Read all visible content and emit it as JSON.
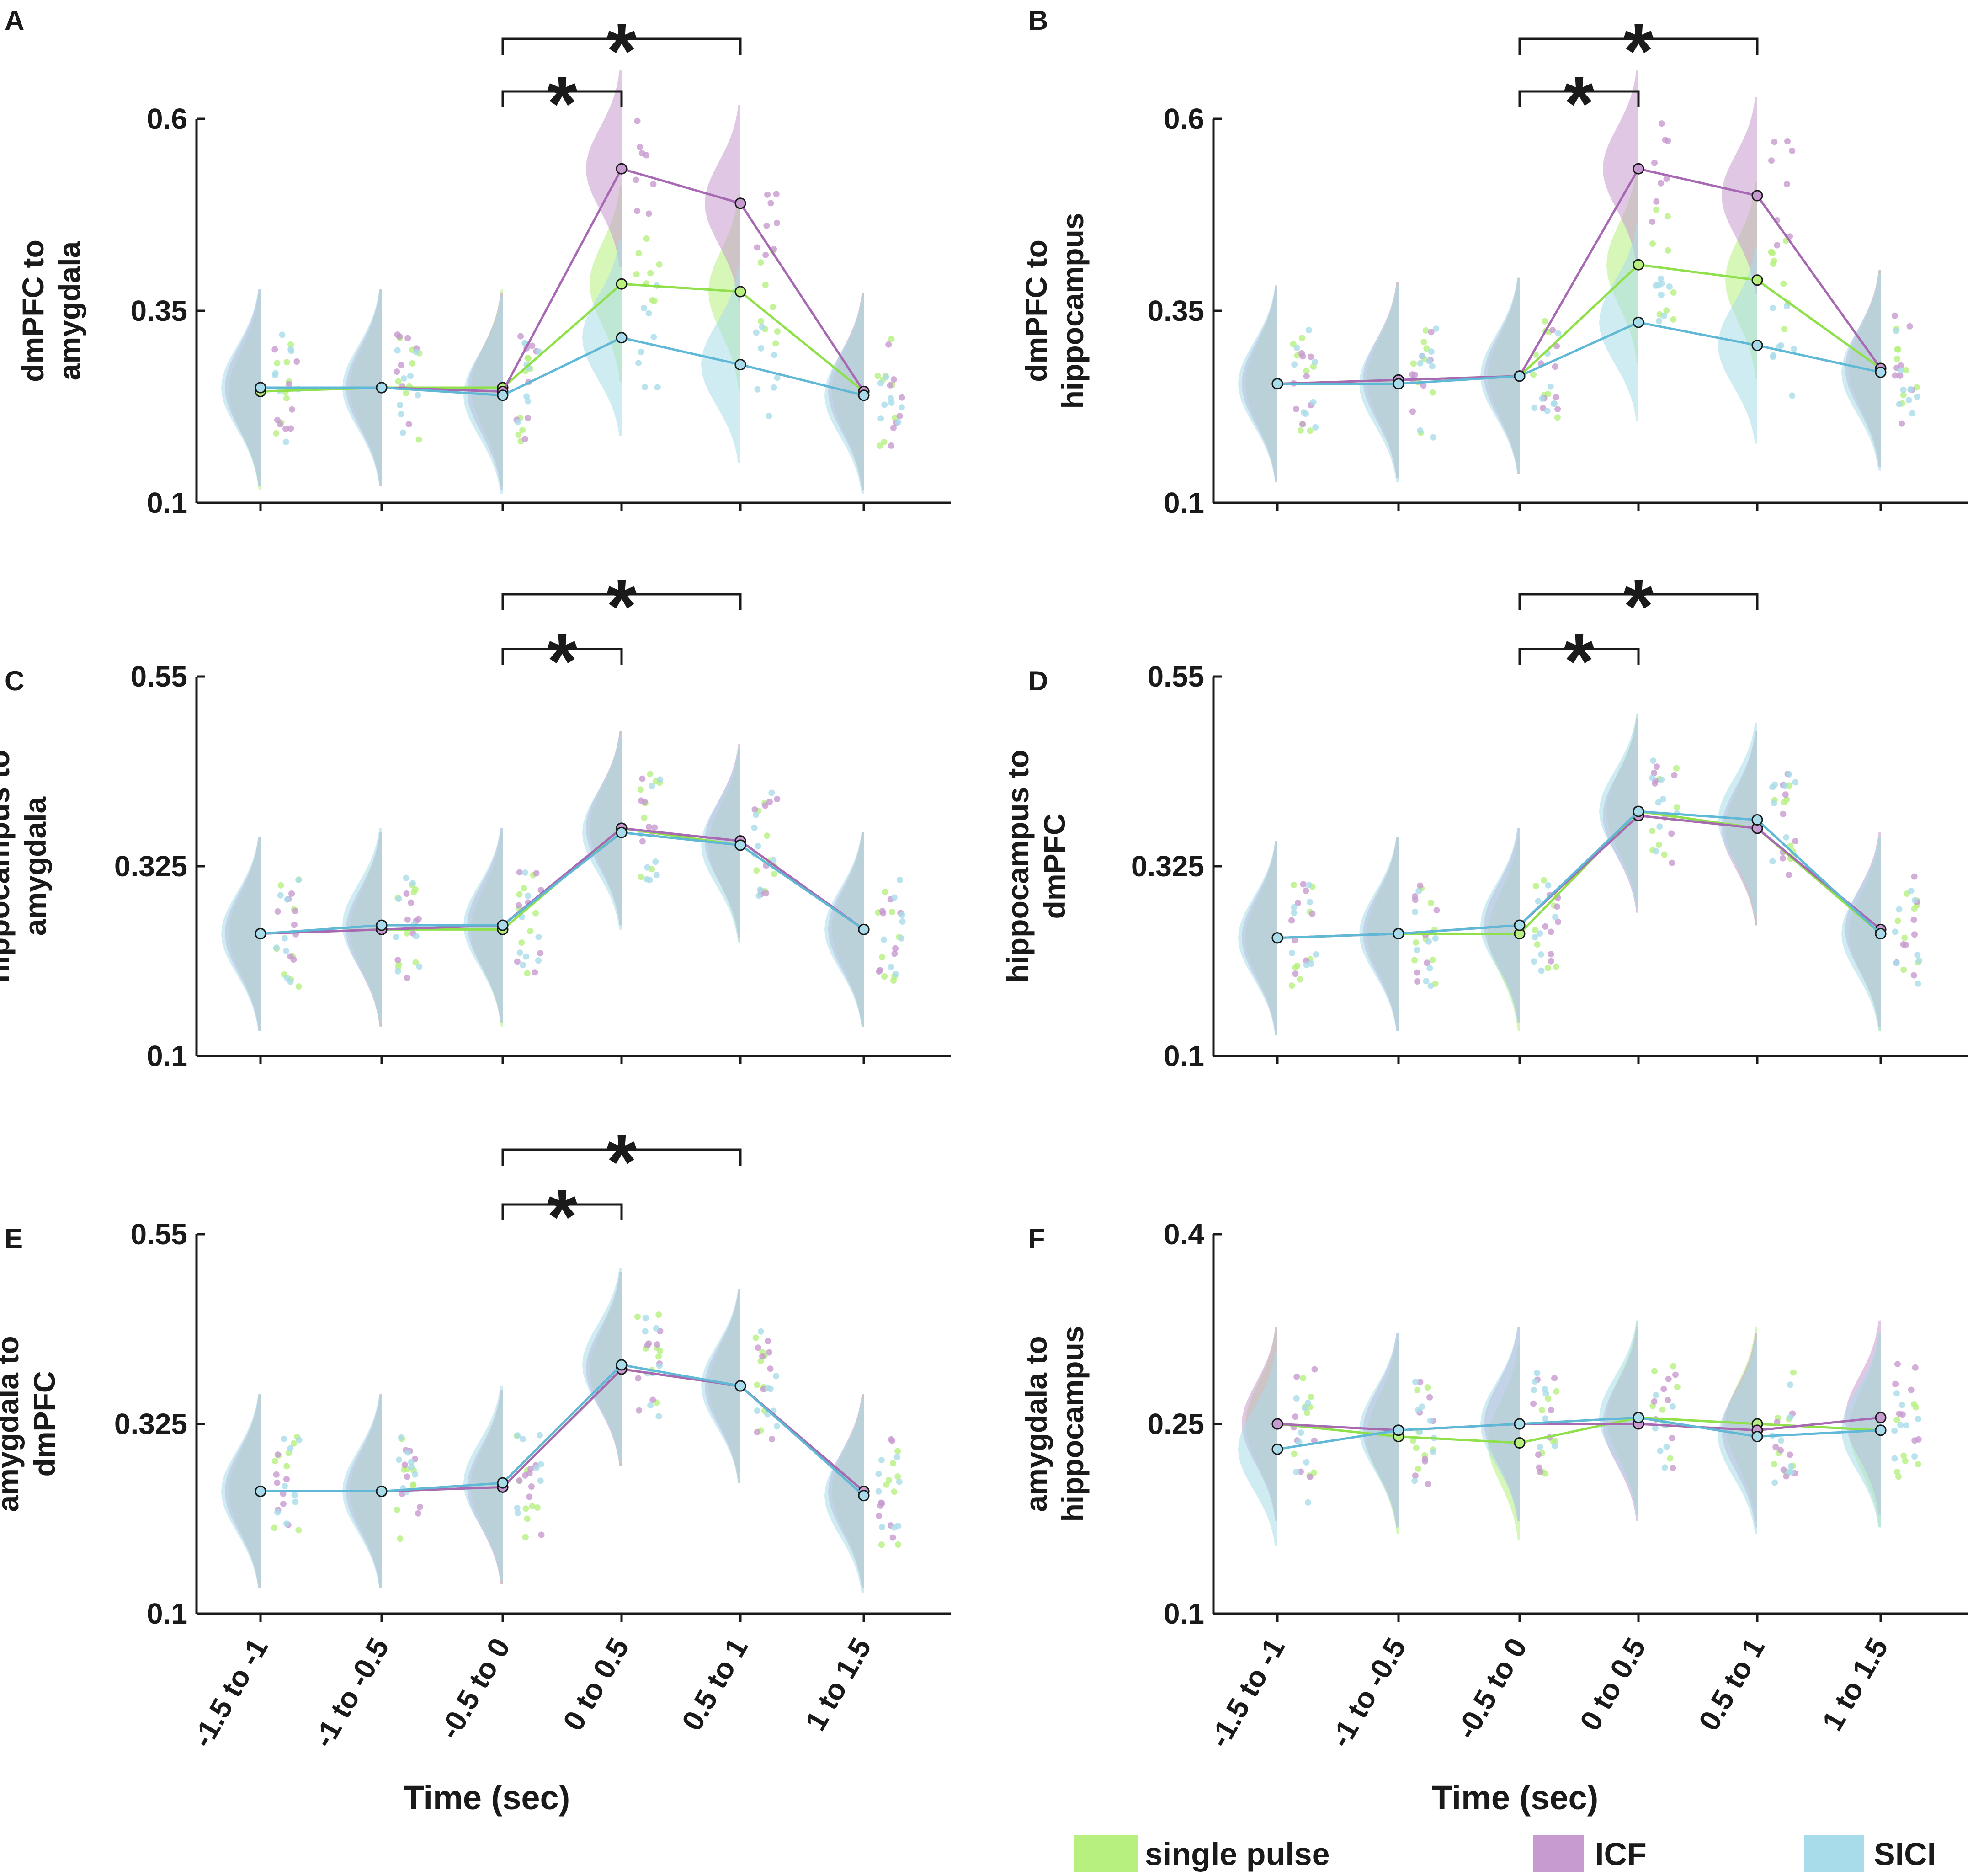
{
  "figure": {
    "xlabel": "Time (sec)",
    "legend": [
      {
        "label": "single pulse",
        "color": "#b7f07f"
      },
      {
        "label": "ICF",
        "color": "#c79ad0"
      },
      {
        "label": "SICI",
        "color": "#a9dcea"
      }
    ]
  },
  "chart_data": [
    {
      "panel": "A",
      "type": "line",
      "title": "",
      "ylabel": [
        "dmPFC to",
        "amygdala"
      ],
      "yticks": [
        "0.1",
        "0.35",
        "0.6"
      ],
      "ylim": [
        0.1,
        0.6
      ],
      "categories": [
        "-1.5 to -1",
        "-1 to -0.5",
        "-0.5 to 0",
        "0 to 0.5",
        "0.5 to 1",
        "1 to 1.5"
      ],
      "series": [
        {
          "name": "single pulse",
          "values": [
            0.245,
            0.25,
            0.25,
            0.385,
            0.375,
            0.245
          ]
        },
        {
          "name": "ICF",
          "values": [
            0.25,
            0.25,
            0.245,
            0.535,
            0.49,
            0.245
          ]
        },
        {
          "name": "SICI",
          "values": [
            0.25,
            0.25,
            0.24,
            0.315,
            0.28,
            0.24
          ]
        }
      ],
      "significance": [
        {
          "from": "-0.5 to 0",
          "to": "0 to 0.5",
          "label": "*"
        },
        {
          "from": "-0.5 to 0",
          "to": "0.5 to 1",
          "label": "*"
        }
      ]
    },
    {
      "panel": "B",
      "type": "line",
      "title": "",
      "ylabel": [
        "dmPFC to",
        "hippocampus"
      ],
      "yticks": [
        "0.1",
        "0.35",
        "0.6"
      ],
      "ylim": [
        0.1,
        0.6
      ],
      "categories": [
        "-1.5 to -1",
        "-1 to -0.5",
        "-0.5 to 0",
        "0 to 0.5",
        "0.5 to 1",
        "1 to 1.5"
      ],
      "series": [
        {
          "name": "single pulse",
          "values": [
            0.255,
            0.26,
            0.265,
            0.41,
            0.39,
            0.275
          ]
        },
        {
          "name": "ICF",
          "values": [
            0.255,
            0.26,
            0.265,
            0.535,
            0.5,
            0.275
          ]
        },
        {
          "name": "SICI",
          "values": [
            0.255,
            0.255,
            0.265,
            0.335,
            0.305,
            0.27
          ]
        }
      ],
      "significance": [
        {
          "from": "-0.5 to 0",
          "to": "0 to 0.5",
          "label": "*"
        },
        {
          "from": "-0.5 to 0",
          "to": "0.5 to 1",
          "label": "*"
        }
      ]
    },
    {
      "panel": "C",
      "type": "line",
      "title": "",
      "ylabel": [
        "hippocampus to",
        "amygdala"
      ],
      "yticks": [
        "0.1",
        "0.325",
        "0.55"
      ],
      "ylim": [
        0.1,
        0.55
      ],
      "categories": [
        "-1.5 to -1",
        "-1 to -0.5",
        "-0.5 to 0",
        "0 to 0.5",
        "0.5 to 1",
        "1 to 1.5"
      ],
      "series": [
        {
          "name": "single pulse",
          "values": [
            0.245,
            0.25,
            0.25,
            0.37,
            0.35,
            0.25
          ]
        },
        {
          "name": "ICF",
          "values": [
            0.245,
            0.25,
            0.255,
            0.37,
            0.355,
            0.25
          ]
        },
        {
          "name": "SICI",
          "values": [
            0.245,
            0.255,
            0.255,
            0.365,
            0.35,
            0.25
          ]
        }
      ],
      "significance": [
        {
          "from": "-0.5 to 0",
          "to": "0 to 0.5",
          "label": "*"
        },
        {
          "from": "-0.5 to 0",
          "to": "0.5 to 1",
          "label": "*"
        }
      ]
    },
    {
      "panel": "D",
      "type": "line",
      "title": "",
      "ylabel": [
        "hippocampus to",
        "dmPFC"
      ],
      "yticks": [
        "0.1",
        "0.325",
        "0.55"
      ],
      "ylim": [
        0.1,
        0.55
      ],
      "categories": [
        "-1.5 to -1",
        "-1 to -0.5",
        "-0.5 to 0",
        "0 to 0.5",
        "0.5 to 1",
        "1 to 1.5"
      ],
      "series": [
        {
          "name": "single pulse",
          "values": [
            0.24,
            0.245,
            0.245,
            0.39,
            0.37,
            0.245
          ]
        },
        {
          "name": "ICF",
          "values": [
            0.24,
            0.245,
            0.255,
            0.385,
            0.37,
            0.25
          ]
        },
        {
          "name": "SICI",
          "values": [
            0.24,
            0.245,
            0.255,
            0.39,
            0.38,
            0.245
          ]
        }
      ],
      "significance": [
        {
          "from": "-0.5 to 0",
          "to": "0 to 0.5",
          "label": "*"
        },
        {
          "from": "-0.5 to 0",
          "to": "0.5 to 1",
          "label": "*"
        }
      ]
    },
    {
      "panel": "E",
      "type": "line",
      "title": "",
      "ylabel": [
        "amygdala to",
        "dmPFC"
      ],
      "yticks": [
        "0.1",
        "0.325",
        "0.55"
      ],
      "ylim": [
        0.1,
        0.55
      ],
      "categories": [
        "-1.5 to -1",
        "-1 to -0.5",
        "-0.5 to 0",
        "0 to 0.5",
        "0.5 to 1",
        "1 to 1.5"
      ],
      "series": [
        {
          "name": "single pulse",
          "values": [
            0.245,
            0.245,
            0.25,
            0.39,
            0.37,
            0.245
          ]
        },
        {
          "name": "ICF",
          "values": [
            0.245,
            0.245,
            0.25,
            0.39,
            0.37,
            0.245
          ]
        },
        {
          "name": "SICI",
          "values": [
            0.245,
            0.245,
            0.255,
            0.395,
            0.37,
            0.24
          ]
        }
      ],
      "significance": [
        {
          "from": "-0.5 to 0",
          "to": "0 to 0.5",
          "label": "*"
        },
        {
          "from": "-0.5 to 0",
          "to": "0.5 to 1",
          "label": "*"
        }
      ]
    },
    {
      "panel": "F",
      "type": "line",
      "title": "",
      "ylabel": [
        "amygdala to",
        "hippocampus"
      ],
      "yticks": [
        "0.1",
        "0.25",
        "0.4"
      ],
      "ylim": [
        0.1,
        0.4
      ],
      "categories": [
        "-1.5 to -1",
        "-1 to -0.5",
        "-0.5 to 0",
        "0 to 0.5",
        "0.5 to 1",
        "1 to 1.5"
      ],
      "series": [
        {
          "name": "single pulse",
          "values": [
            0.25,
            0.24,
            0.235,
            0.255,
            0.25,
            0.245
          ]
        },
        {
          "name": "ICF",
          "values": [
            0.25,
            0.245,
            0.25,
            0.25,
            0.245,
            0.255
          ]
        },
        {
          "name": "SICI",
          "values": [
            0.23,
            0.245,
            0.25,
            0.255,
            0.24,
            0.245
          ]
        }
      ],
      "significance": []
    }
  ]
}
